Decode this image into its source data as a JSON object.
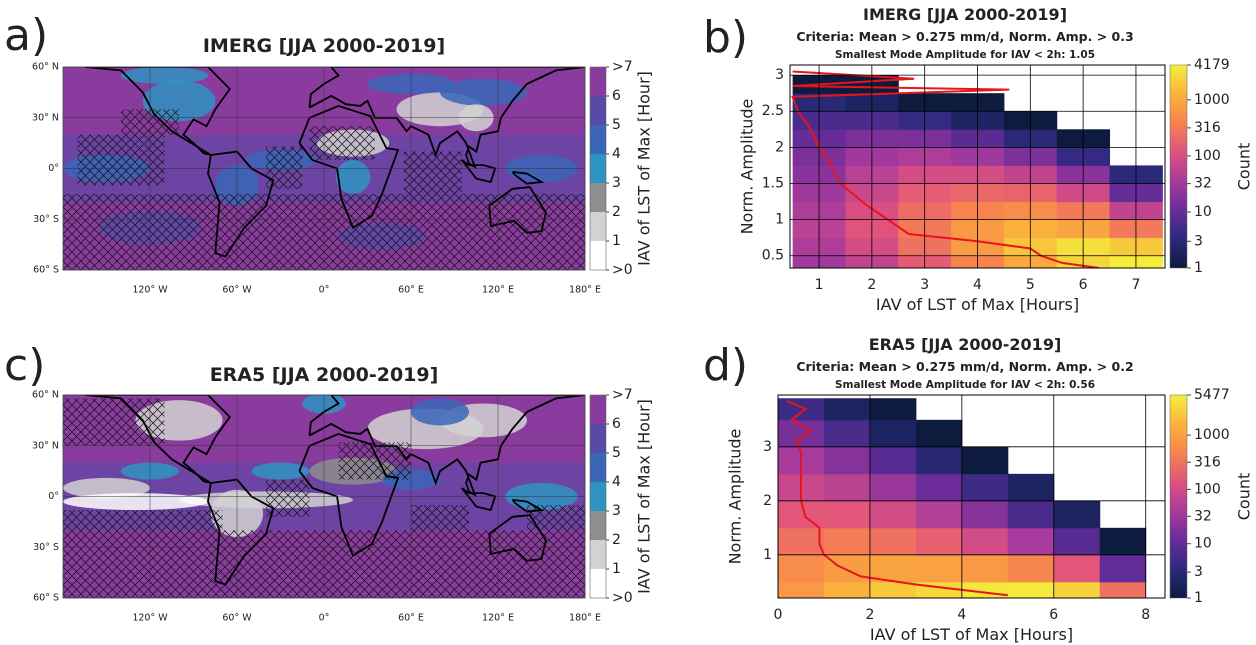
{
  "chart_data": [
    {
      "type": "map",
      "panel_label": "a)",
      "title": "IMERG [JJA 2000-2019]",
      "xlim": [
        -180,
        180
      ],
      "ylim": [
        -60,
        60
      ],
      "yticks": [
        {
          "value": 60,
          "label": "60° N"
        },
        {
          "value": 30,
          "label": "30° N"
        },
        {
          "value": 0,
          "label": "0°"
        },
        {
          "value": -30,
          "label": "30° S"
        },
        {
          "value": -60,
          "label": "60° S"
        }
      ],
      "xticks": [
        {
          "value": -120,
          "label": "120° W"
        },
        {
          "value": -60,
          "label": "60° W"
        },
        {
          "value": 0,
          "label": "0°"
        },
        {
          "value": 60,
          "label": "60° E"
        },
        {
          "value": 120,
          "label": "120° E"
        },
        {
          "value": 180,
          "label": "180° E"
        }
      ],
      "colorbar": {
        "label": "IAV of LST of Max [Hour]",
        "ticks": [
          {
            "value": 7,
            "label": ">7"
          },
          6,
          5,
          4,
          3,
          2,
          1,
          {
            "value": 0,
            "label": ">0"
          }
        ],
        "colors": [
          "#8a3c9e",
          "#5a4aa8",
          "#3a66b8",
          "#2f93c2",
          "#8e8e8e",
          "#d2d2d2",
          "#ffffff"
        ]
      }
    },
    {
      "type": "heatmap",
      "panel_label": "b)",
      "title": "IMERG [JJA 2000-2019]",
      "subtitle": "Criteria: Mean > 0.275 mm/d, Norm. Amp. > 0.3",
      "annotation": "Smallest Mode Amplitude for IAV < 2h: 1.05",
      "xlabel": "IAV of LST of Max [Hours]",
      "ylabel": "Norm. Amplitude",
      "xlim": [
        0.45,
        7.55
      ],
      "ylim": [
        0.33,
        3.14
      ],
      "xticks": [
        1,
        2,
        3,
        4,
        5,
        6,
        7
      ],
      "yticks": [
        0.5,
        1,
        1.5,
        2,
        2.5,
        3
      ],
      "grid": true,
      "heatmap": {
        "x_bins": [
          0.5,
          1.5,
          2.5,
          3.5,
          4.5,
          5.5,
          6.5,
          7.5
        ],
        "y_bins": [
          0.25,
          0.5,
          0.75,
          1,
          1.25,
          1.5,
          1.75,
          2,
          2.25,
          2.5,
          2.75,
          3
        ],
        "counts": [
          [
            30,
            60,
            150,
            400,
            1000,
            2500,
            4000
          ],
          [
            40,
            90,
            250,
            700,
            1800,
            3000,
            2000
          ],
          [
            50,
            120,
            300,
            700,
            1200,
            900,
            300
          ],
          [
            40,
            100,
            220,
            400,
            500,
            300,
            60
          ],
          [
            30,
            70,
            150,
            200,
            180,
            80,
            10
          ],
          [
            20,
            50,
            90,
            90,
            60,
            20,
            3
          ],
          [
            15,
            30,
            40,
            30,
            15,
            4,
            null
          ],
          [
            10,
            15,
            15,
            8,
            3,
            1,
            null
          ],
          [
            6,
            6,
            4,
            2,
            1,
            null,
            null
          ],
          [
            3,
            2,
            1,
            1,
            null,
            null,
            null
          ],
          [
            1,
            1,
            null,
            null,
            null,
            null,
            null
          ]
        ]
      },
      "colorbar": {
        "label": "Count",
        "log": true,
        "lim": [
          1,
          4179
        ],
        "ticks": [
          1,
          3,
          10,
          32,
          100,
          316,
          1000,
          4179
        ],
        "colors": [
          "#0d1b3e",
          "#2b2a7c",
          "#6a2c9a",
          "#a83b9b",
          "#e0527e",
          "#f7834f",
          "#fbb33b",
          "#f3f03c"
        ]
      },
      "series": [
        {
          "color": "#e8141c",
          "x": [
            6.3,
            5.6,
            5.2,
            5.0,
            4.0,
            2.7,
            2.5,
            2.3,
            1.9,
            1.4,
            1.2,
            1.0,
            0.8,
            0.6,
            0.5,
            4.6,
            0.5,
            2.8,
            0.5
          ],
          "values": [
            0.33,
            0.4,
            0.5,
            0.6,
            0.7,
            0.8,
            0.9,
            1.0,
            1.2,
            1.5,
            1.8,
            2.0,
            2.3,
            2.5,
            2.7,
            2.8,
            2.85,
            2.95,
            3.05
          ]
        }
      ]
    },
    {
      "type": "map",
      "panel_label": "c)",
      "title": "ERA5 [JJA 2000-2019]",
      "xlim": [
        -180,
        180
      ],
      "ylim": [
        -60,
        60
      ],
      "yticks": [
        {
          "value": 60,
          "label": "60° N"
        },
        {
          "value": 30,
          "label": "30° N"
        },
        {
          "value": 0,
          "label": "0°"
        },
        {
          "value": -30,
          "label": "30° S"
        },
        {
          "value": -60,
          "label": "60° S"
        }
      ],
      "xticks": [
        {
          "value": -120,
          "label": "120° W"
        },
        {
          "value": -60,
          "label": "60° W"
        },
        {
          "value": 0,
          "label": "0°"
        },
        {
          "value": 60,
          "label": "60° E"
        },
        {
          "value": 120,
          "label": "120° E"
        },
        {
          "value": 180,
          "label": "180° E"
        }
      ],
      "colorbar": {
        "label": "IAV of LST of Max [Hour]",
        "ticks": [
          {
            "value": 7,
            "label": ">7"
          },
          6,
          5,
          4,
          3,
          2,
          1,
          {
            "value": 0,
            "label": ">0"
          }
        ],
        "colors": [
          "#8a3c9e",
          "#5a4aa8",
          "#3a66b8",
          "#2f93c2",
          "#8e8e8e",
          "#d2d2d2",
          "#ffffff"
        ]
      }
    },
    {
      "type": "heatmap",
      "panel_label": "d)",
      "title": "ERA5 [JJA 2000-2019]",
      "subtitle": "Criteria: Mean > 0.275 mm/d, Norm. Amp. > 0.2",
      "annotation": "Smallest Mode Amplitude for IAV < 2h: 0.56",
      "xlabel": "IAV of LST of Max [Hours]",
      "ylabel": "Norm. Amplitude",
      "xlim": [
        0,
        8.42
      ],
      "ylim": [
        0.2,
        3.96
      ],
      "xticks": [
        0,
        2,
        4,
        6,
        8
      ],
      "yticks": [
        1,
        2,
        3
      ],
      "grid": true,
      "heatmap": {
        "x_bins": [
          0,
          1,
          2,
          3,
          4,
          5,
          6,
          7,
          8
        ],
        "y_bins": [
          0.2,
          0.5,
          1,
          1.5,
          2,
          2.5,
          3,
          3.5,
          3.9
        ],
        "counts": [
          [
            800,
            1500,
            2500,
            3500,
            4500,
            5000,
            3000,
            300
          ],
          [
            600,
            900,
            1100,
            1000,
            800,
            500,
            150,
            10
          ],
          [
            300,
            400,
            300,
            200,
            100,
            40,
            8,
            1
          ],
          [
            150,
            150,
            100,
            50,
            20,
            6,
            2,
            null
          ],
          [
            80,
            60,
            30,
            12,
            5,
            2,
            null,
            null
          ],
          [
            40,
            20,
            8,
            3,
            1,
            null,
            null,
            null
          ],
          [
            15,
            6,
            2,
            1,
            null,
            null,
            null,
            null
          ],
          [
            5,
            2,
            1,
            null,
            null,
            null,
            null,
            null
          ]
        ]
      },
      "colorbar": {
        "label": "Count",
        "log": true,
        "lim": [
          1,
          5477
        ],
        "ticks": [
          1,
          3,
          10,
          32,
          100,
          316,
          1000,
          5477
        ],
        "colors": [
          "#0d1b3e",
          "#2b2a7c",
          "#6a2c9a",
          "#a83b9b",
          "#e0527e",
          "#f7834f",
          "#fbb33b",
          "#f3f03c"
        ]
      },
      "series": [
        {
          "color": "#e8141c",
          "x": [
            0.2,
            0.6,
            0.3,
            0.7,
            0.4,
            0.5,
            0.5,
            0.5,
            0.6,
            0.9,
            0.9,
            1.0,
            1.3,
            1.8,
            3.0,
            4.0,
            5.0
          ],
          "values": [
            3.85,
            3.7,
            3.5,
            3.3,
            3.1,
            2.9,
            2.5,
            2.0,
            1.7,
            1.5,
            1.2,
            1.0,
            0.8,
            0.6,
            0.45,
            0.35,
            0.25
          ]
        }
      ]
    }
  ]
}
